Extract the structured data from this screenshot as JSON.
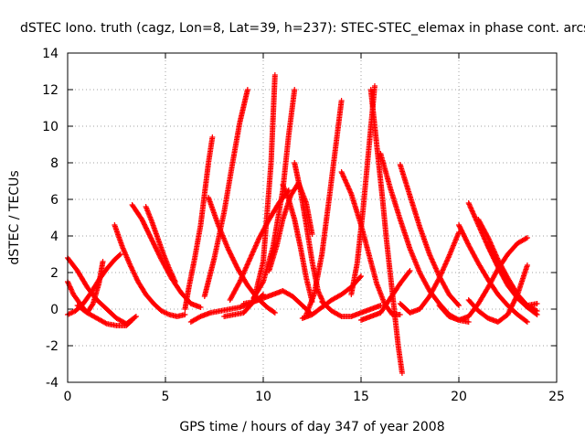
{
  "chart_data": {
    "type": "scatter",
    "title": "dSTEC Iono. truth (cagz, Lon=8, Lat=39, h=237): STEC-STEC_elemax in phase cont. arcs",
    "xlabel": "GPS time / hours of day 347 of year 2008",
    "ylabel": "dSTEC  / TECUs",
    "xlim": [
      0,
      25
    ],
    "ylim": [
      -4,
      14
    ],
    "x_ticks": [
      "0",
      "5",
      "10",
      "15",
      "20",
      "25"
    ],
    "y_ticks": [
      "-4",
      "-2",
      "0",
      "2",
      "4",
      "6",
      "8",
      "10",
      "12",
      "14"
    ],
    "grid": true,
    "marker": "+",
    "color": "#ff0000",
    "series": [
      {
        "x": [
          0.0,
          0.5,
          1.0,
          1.5,
          2.0,
          2.5,
          3.0,
          3.5
        ],
        "y": [
          2.8,
          2.1,
          1.2,
          0.5,
          0.0,
          -0.5,
          -0.8,
          -0.4
        ]
      },
      {
        "x": [
          0.0,
          0.3,
          0.7,
          1.0,
          1.3,
          1.6,
          1.8
        ],
        "y": [
          1.5,
          0.8,
          0.2,
          -0.2,
          0.3,
          1.4,
          2.6
        ]
      },
      {
        "x": [
          0.0,
          0.4,
          0.8,
          1.2,
          1.6,
          2.0,
          2.4,
          2.7
        ],
        "y": [
          -0.3,
          -0.1,
          0.3,
          0.9,
          1.6,
          2.2,
          2.7,
          3.0
        ]
      },
      {
        "x": [
          0.5,
          1.0,
          1.5,
          2.0,
          2.5,
          3.0,
          3.3
        ],
        "y": [
          0.2,
          -0.2,
          -0.5,
          -0.8,
          -0.9,
          -0.9,
          -0.6
        ]
      },
      {
        "x": [
          2.4,
          2.8,
          3.2,
          3.6,
          4.0,
          4.4,
          4.8,
          5.2,
          5.6,
          6.0
        ],
        "y": [
          4.6,
          3.4,
          2.4,
          1.5,
          0.8,
          0.3,
          -0.1,
          -0.3,
          -0.4,
          -0.3
        ]
      },
      {
        "x": [
          3.3,
          3.8,
          4.3,
          4.8,
          5.3,
          5.8,
          6.3,
          6.8
        ],
        "y": [
          5.7,
          4.9,
          3.8,
          2.7,
          1.7,
          0.9,
          0.3,
          0.1
        ]
      },
      {
        "x": [
          4.0,
          4.3,
          4.6,
          4.9,
          5.2,
          5.5
        ],
        "y": [
          5.6,
          4.8,
          3.9,
          3.0,
          2.2,
          1.5
        ]
      },
      {
        "x": [
          6.0,
          6.2,
          6.5,
          6.8,
          7.0,
          7.2,
          7.4
        ],
        "y": [
          0.0,
          1.2,
          2.8,
          4.6,
          6.3,
          8.0,
          9.4
        ]
      },
      {
        "x": [
          6.3,
          6.8,
          7.3,
          7.8,
          8.3,
          8.8,
          9.3,
          9.7,
          10.0
        ],
        "y": [
          -0.7,
          -0.4,
          -0.2,
          -0.1,
          0.0,
          0.1,
          0.3,
          0.5,
          0.8
        ]
      },
      {
        "x": [
          7.2,
          7.7,
          8.2,
          8.7,
          9.2,
          9.7,
          10.2,
          10.6
        ],
        "y": [
          6.1,
          4.6,
          3.3,
          2.2,
          1.3,
          0.6,
          0.1,
          -0.2
        ]
      },
      {
        "x": [
          7.0,
          7.5,
          8.0,
          8.4,
          8.8,
          9.2
        ],
        "y": [
          0.7,
          2.8,
          5.3,
          7.8,
          10.2,
          12.0
        ]
      },
      {
        "x": [
          8.0,
          8.5,
          9.0,
          9.5,
          10.0,
          10.4,
          10.6
        ],
        "y": [
          -0.4,
          -0.3,
          -0.2,
          0.4,
          2.6,
          8.0,
          12.8
        ]
      },
      {
        "x": [
          8.3,
          8.8,
          9.3,
          9.8,
          10.3,
          10.8,
          11.3
        ],
        "y": [
          0.5,
          1.5,
          2.7,
          3.9,
          4.9,
          5.8,
          6.5
        ]
      },
      {
        "x": [
          9.0,
          9.5,
          10.0,
          10.5,
          11.0,
          11.5,
          12.0,
          12.4
        ],
        "y": [
          0.3,
          0.4,
          0.6,
          0.8,
          1.0,
          0.7,
          0.2,
          -0.2
        ]
      },
      {
        "x": [
          9.5,
          10.0,
          10.5,
          11.0,
          11.3,
          11.6
        ],
        "y": [
          0.6,
          1.5,
          3.4,
          6.5,
          9.5,
          12.0
        ]
      },
      {
        "x": [
          10.3,
          10.7,
          11.0,
          11.4,
          11.8,
          12.2,
          12.5
        ],
        "y": [
          2.1,
          3.5,
          4.9,
          6.2,
          6.9,
          5.8,
          4.1
        ]
      },
      {
        "x": [
          11.0,
          11.3,
          11.6,
          11.9,
          12.2,
          12.5
        ],
        "y": [
          6.8,
          6.0,
          4.9,
          3.4,
          1.7,
          0.4
        ]
      },
      {
        "x": [
          11.6,
          11.9,
          12.2,
          12.5,
          12.8,
          13.1
        ],
        "y": [
          8.0,
          6.5,
          4.6,
          2.6,
          1.0,
          0.3
        ]
      },
      {
        "x": [
          12.0,
          12.5,
          13.0,
          13.5,
          14.0,
          14.5,
          15.0
        ],
        "y": [
          -0.5,
          -0.3,
          0.1,
          0.5,
          0.8,
          1.2,
          1.8
        ]
      },
      {
        "x": [
          12.2,
          12.6,
          13.0,
          13.4,
          13.8,
          14.0
        ],
        "y": [
          -0.3,
          0.8,
          3.0,
          6.3,
          9.7,
          11.4
        ]
      },
      {
        "x": [
          13.0,
          13.5,
          14.0,
          14.5,
          15.0,
          15.5,
          16.0
        ],
        "y": [
          0.4,
          -0.1,
          -0.4,
          -0.4,
          -0.2,
          0.0,
          0.2
        ]
      },
      {
        "x": [
          14.0,
          14.5,
          15.0,
          15.4,
          15.8,
          16.2,
          16.6,
          17.0
        ],
        "y": [
          7.5,
          6.3,
          4.6,
          3.0,
          1.4,
          0.3,
          -0.3,
          -0.3
        ]
      },
      {
        "x": [
          14.5,
          14.8,
          15.1,
          15.4,
          15.7
        ],
        "y": [
          0.8,
          2.5,
          5.4,
          8.8,
          12.2
        ]
      },
      {
        "x": [
          15.5,
          15.7,
          15.9,
          16.1,
          16.3,
          16.6,
          16.9,
          17.1
        ],
        "y": [
          12.0,
          10.0,
          8.0,
          6.0,
          3.8,
          0.9,
          -2.0,
          -3.5
        ]
      },
      {
        "x": [
          15.0,
          15.5,
          16.0,
          16.5,
          17.0,
          17.5
        ],
        "y": [
          -0.6,
          -0.4,
          -0.2,
          0.6,
          1.4,
          2.1
        ]
      },
      {
        "x": [
          16.0,
          16.5,
          17.0,
          17.5,
          18.0,
          18.5,
          19.0,
          19.5,
          20.0,
          20.5
        ],
        "y": [
          8.5,
          6.6,
          4.9,
          3.3,
          2.0,
          1.0,
          0.3,
          -0.3,
          -0.6,
          -0.7
        ]
      },
      {
        "x": [
          17.0,
          17.5,
          18.0,
          18.5,
          19.0,
          19.5,
          20.0
        ],
        "y": [
          7.9,
          6.2,
          4.5,
          3.0,
          1.8,
          0.8,
          0.2
        ]
      },
      {
        "x": [
          17.0,
          17.5,
          18.0,
          18.5,
          19.0,
          19.5,
          20.0
        ],
        "y": [
          0.3,
          -0.2,
          0.0,
          0.7,
          1.7,
          2.9,
          4.2
        ]
      },
      {
        "x": [
          19.0,
          19.5,
          20.0,
          20.5,
          21.0,
          21.5,
          22.0,
          22.5,
          23.0,
          23.5
        ],
        "y": [
          0.2,
          -0.4,
          -0.6,
          -0.4,
          0.3,
          1.2,
          2.2,
          3.0,
          3.6,
          3.9
        ]
      },
      {
        "x": [
          20.0,
          20.5,
          21.0,
          21.5,
          22.0,
          22.5,
          23.0,
          23.5
        ],
        "y": [
          4.6,
          3.5,
          2.5,
          1.6,
          0.8,
          0.2,
          -0.3,
          -0.7
        ]
      },
      {
        "x": [
          20.5,
          21.0,
          21.5,
          22.0,
          22.5,
          23.0,
          23.5,
          24.0
        ],
        "y": [
          5.8,
          4.6,
          3.4,
          2.3,
          1.3,
          0.6,
          0.1,
          -0.3
        ]
      },
      {
        "x": [
          21.0,
          21.5,
          22.0,
          22.5,
          23.0,
          23.5,
          24.0
        ],
        "y": [
          4.9,
          3.9,
          2.7,
          1.7,
          0.8,
          0.2,
          -0.1
        ]
      },
      {
        "x": [
          21.5,
          22.0,
          22.5,
          23.0,
          23.5,
          24.0
        ],
        "y": [
          3.5,
          2.4,
          1.4,
          0.6,
          0.2,
          0.3
        ]
      },
      {
        "x": [
          20.5,
          21.0,
          21.5,
          22.0,
          22.5,
          23.0,
          23.5
        ],
        "y": [
          0.5,
          -0.1,
          -0.5,
          -0.7,
          -0.3,
          0.8,
          2.4
        ]
      }
    ]
  }
}
